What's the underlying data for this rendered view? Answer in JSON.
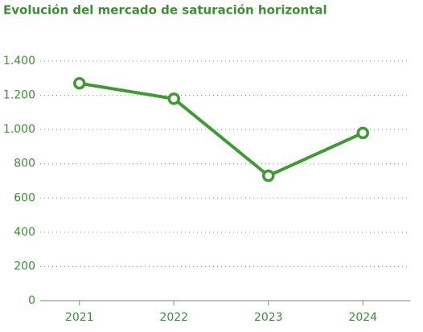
{
  "chart_data": {
    "type": "line",
    "title": "Evolución del mercado de saturación horizontal",
    "categories": [
      "2021",
      "2022",
      "2023",
      "2024"
    ],
    "series": [
      {
        "color": "#3f9a34",
        "values": [
          1270,
          1180,
          730,
          980
        ]
      }
    ],
    "ylim": [
      0,
      1400
    ],
    "yticks": [
      0,
      200,
      400,
      600,
      800,
      {
        "value": 1000,
        "label": "1.000"
      },
      {
        "value": 1200,
        "label": "1.200"
      },
      {
        "value": 1400,
        "label": "1.400"
      }
    ],
    "grid": true
  }
}
